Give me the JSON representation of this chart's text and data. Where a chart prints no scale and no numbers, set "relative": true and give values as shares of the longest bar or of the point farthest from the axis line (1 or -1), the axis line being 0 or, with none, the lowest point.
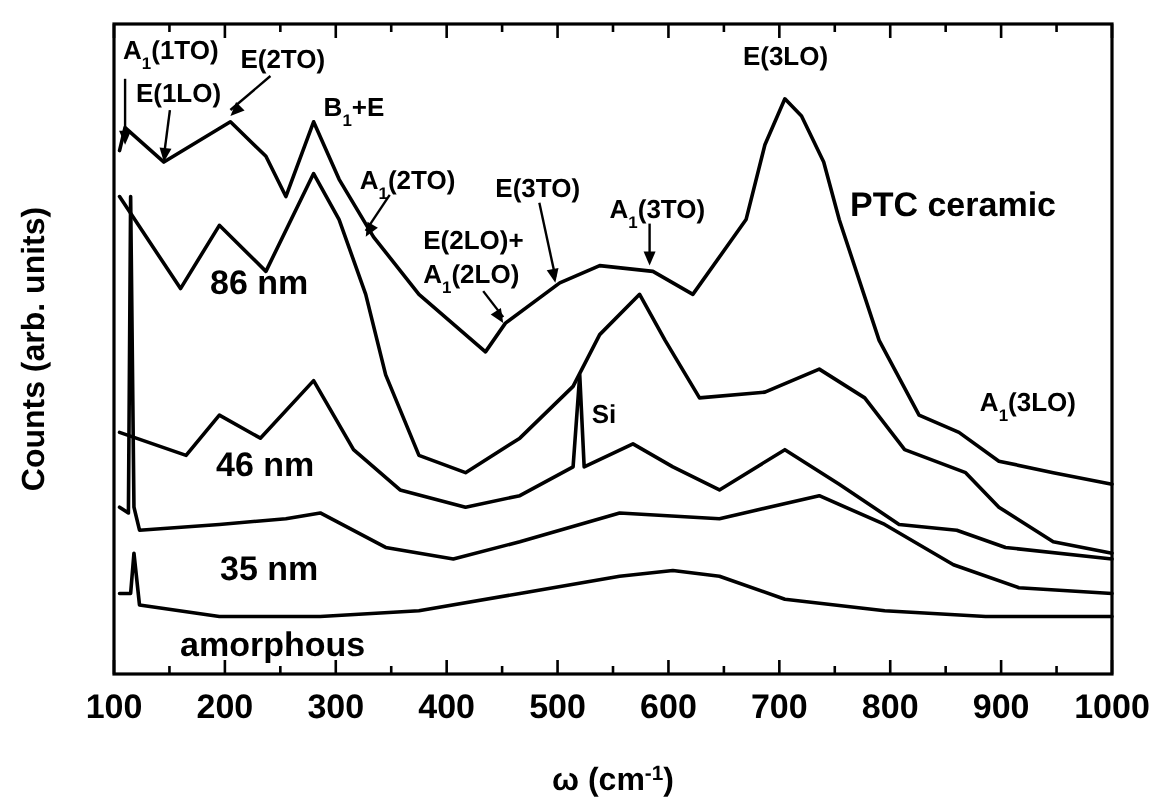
{
  "chart_data": {
    "type": "line",
    "relative": true,
    "xlabel": "ω (cm$^{-1}$)",
    "ylabel": "Counts (arb. units)",
    "xlim": [
      100,
      1000
    ],
    "xticks": [
      100,
      {
        "value": 150,
        "label": null
      },
      200,
      {
        "value": 250,
        "label": null
      },
      300,
      {
        "value": 350,
        "label": null
      },
      400,
      {
        "value": 450,
        "label": null
      },
      500,
      {
        "value": 550,
        "label": null
      },
      600,
      {
        "value": 650,
        "label": null
      },
      700,
      {
        "value": 750,
        "label": null
      },
      800,
      {
        "value": 850,
        "label": null
      },
      900,
      {
        "value": 950,
        "label": null
      },
      1000
    ],
    "legend": false,
    "grid": false,
    "marker": "none",
    "line_style": "solid",
    "tick_labels": "x",
    "series": [
      {
        "name": "PTC ceramic",
        "color": "#000000",
        "x": [
          105,
          110,
          145,
          205,
          237,
          255,
          280,
          303,
          334,
          375,
          435,
          453,
          502,
          538,
          586,
          622,
          670,
          687,
          705,
          720,
          740,
          754,
          790,
          826,
          862,
          898,
          947,
          1000
        ],
        "values": [
          0.91,
          0.95,
          0.89,
          0.96,
          0.9,
          0.83,
          0.96,
          0.86,
          0.76,
          0.66,
          0.56,
          0.61,
          0.68,
          0.71,
          0.7,
          0.66,
          0.79,
          0.92,
          1.0,
          0.97,
          0.89,
          0.79,
          0.58,
          0.45,
          0.42,
          0.37,
          0.35,
          0.33
        ]
      },
      {
        "name": "86 nm",
        "color": "#000000",
        "x": [
          105,
          160,
          195,
          237,
          280,
          303,
          327,
          345,
          375,
          417,
          466,
          514,
          538,
          574,
          597,
          628,
          687,
          736,
          777,
          813,
          868,
          898,
          947,
          1000
        ],
        "values": [
          0.83,
          0.67,
          0.78,
          0.7,
          0.87,
          0.79,
          0.66,
          0.52,
          0.38,
          0.35,
          0.41,
          0.5,
          0.59,
          0.66,
          0.58,
          0.48,
          0.49,
          0.53,
          0.48,
          0.39,
          0.35,
          0.29,
          0.23,
          0.21
        ]
      },
      {
        "name": "46 nm",
        "color": "#000000",
        "x": [
          105,
          165,
          195,
          232,
          280,
          316,
          358,
          417,
          466,
          514,
          520,
          524,
          568,
          604,
          646,
          705,
          754,
          808,
          860,
          904,
          1000
        ],
        "values": [
          0.42,
          0.38,
          0.45,
          0.41,
          0.51,
          0.39,
          0.32,
          0.29,
          0.31,
          0.36,
          0.52,
          0.36,
          0.4,
          0.36,
          0.32,
          0.39,
          0.33,
          0.26,
          0.25,
          0.22,
          0.2
        ]
      },
      {
        "name": "35 nm",
        "color": "#000000",
        "x": [
          105,
          113,
          115,
          118,
          123,
          195,
          255,
          286,
          345,
          406,
          466,
          556,
          646,
          736,
          795,
          857,
          916,
          1000
        ],
        "values": [
          0.29,
          0.28,
          0.83,
          0.29,
          0.25,
          0.26,
          0.27,
          0.28,
          0.22,
          0.2,
          0.23,
          0.28,
          0.27,
          0.31,
          0.26,
          0.19,
          0.15,
          0.14
        ]
      },
      {
        "name": "amorphous",
        "color": "#000000",
        "x": [
          105,
          115,
          118,
          123,
          195,
          286,
          375,
          466,
          556,
          604,
          646,
          705,
          795,
          886,
          1000
        ],
        "values": [
          0.14,
          0.14,
          0.21,
          0.12,
          0.1,
          0.1,
          0.11,
          0.14,
          0.17,
          0.18,
          0.17,
          0.13,
          0.11,
          0.1,
          0.1
        ]
      }
    ],
    "annotations": [
      {
        "text": "A$_{1}$(1TO)",
        "x": 110,
        "y": 0.92
      },
      {
        "text": "E(1LO)",
        "x": 145,
        "y": 0.89
      },
      {
        "text": "E(2TO)",
        "x": 205,
        "y": 0.97
      },
      {
        "text": "B$_{1}$+E",
        "x": 280,
        "y": 0.96
      },
      {
        "text": "A$_{1}$(2TO)",
        "x": 327,
        "y": 0.76
      },
      {
        "text": "E(2LO)+\nA$_{1}$(2LO)",
        "x": 451,
        "y": 0.61
      },
      {
        "text": "E(3TO)",
        "x": 498,
        "y": 0.68
      },
      {
        "text": "A$_{1}$(3TO)",
        "x": 583,
        "y": 0.71
      },
      {
        "text": "E(3LO)",
        "x": 705,
        "y": 1.0
      },
      {
        "text": "A$_{1}$(3LO)",
        "x": 870,
        "y": 0.43
      },
      {
        "text": "Si",
        "x": 520,
        "y": 0.52
      }
    ]
  }
}
